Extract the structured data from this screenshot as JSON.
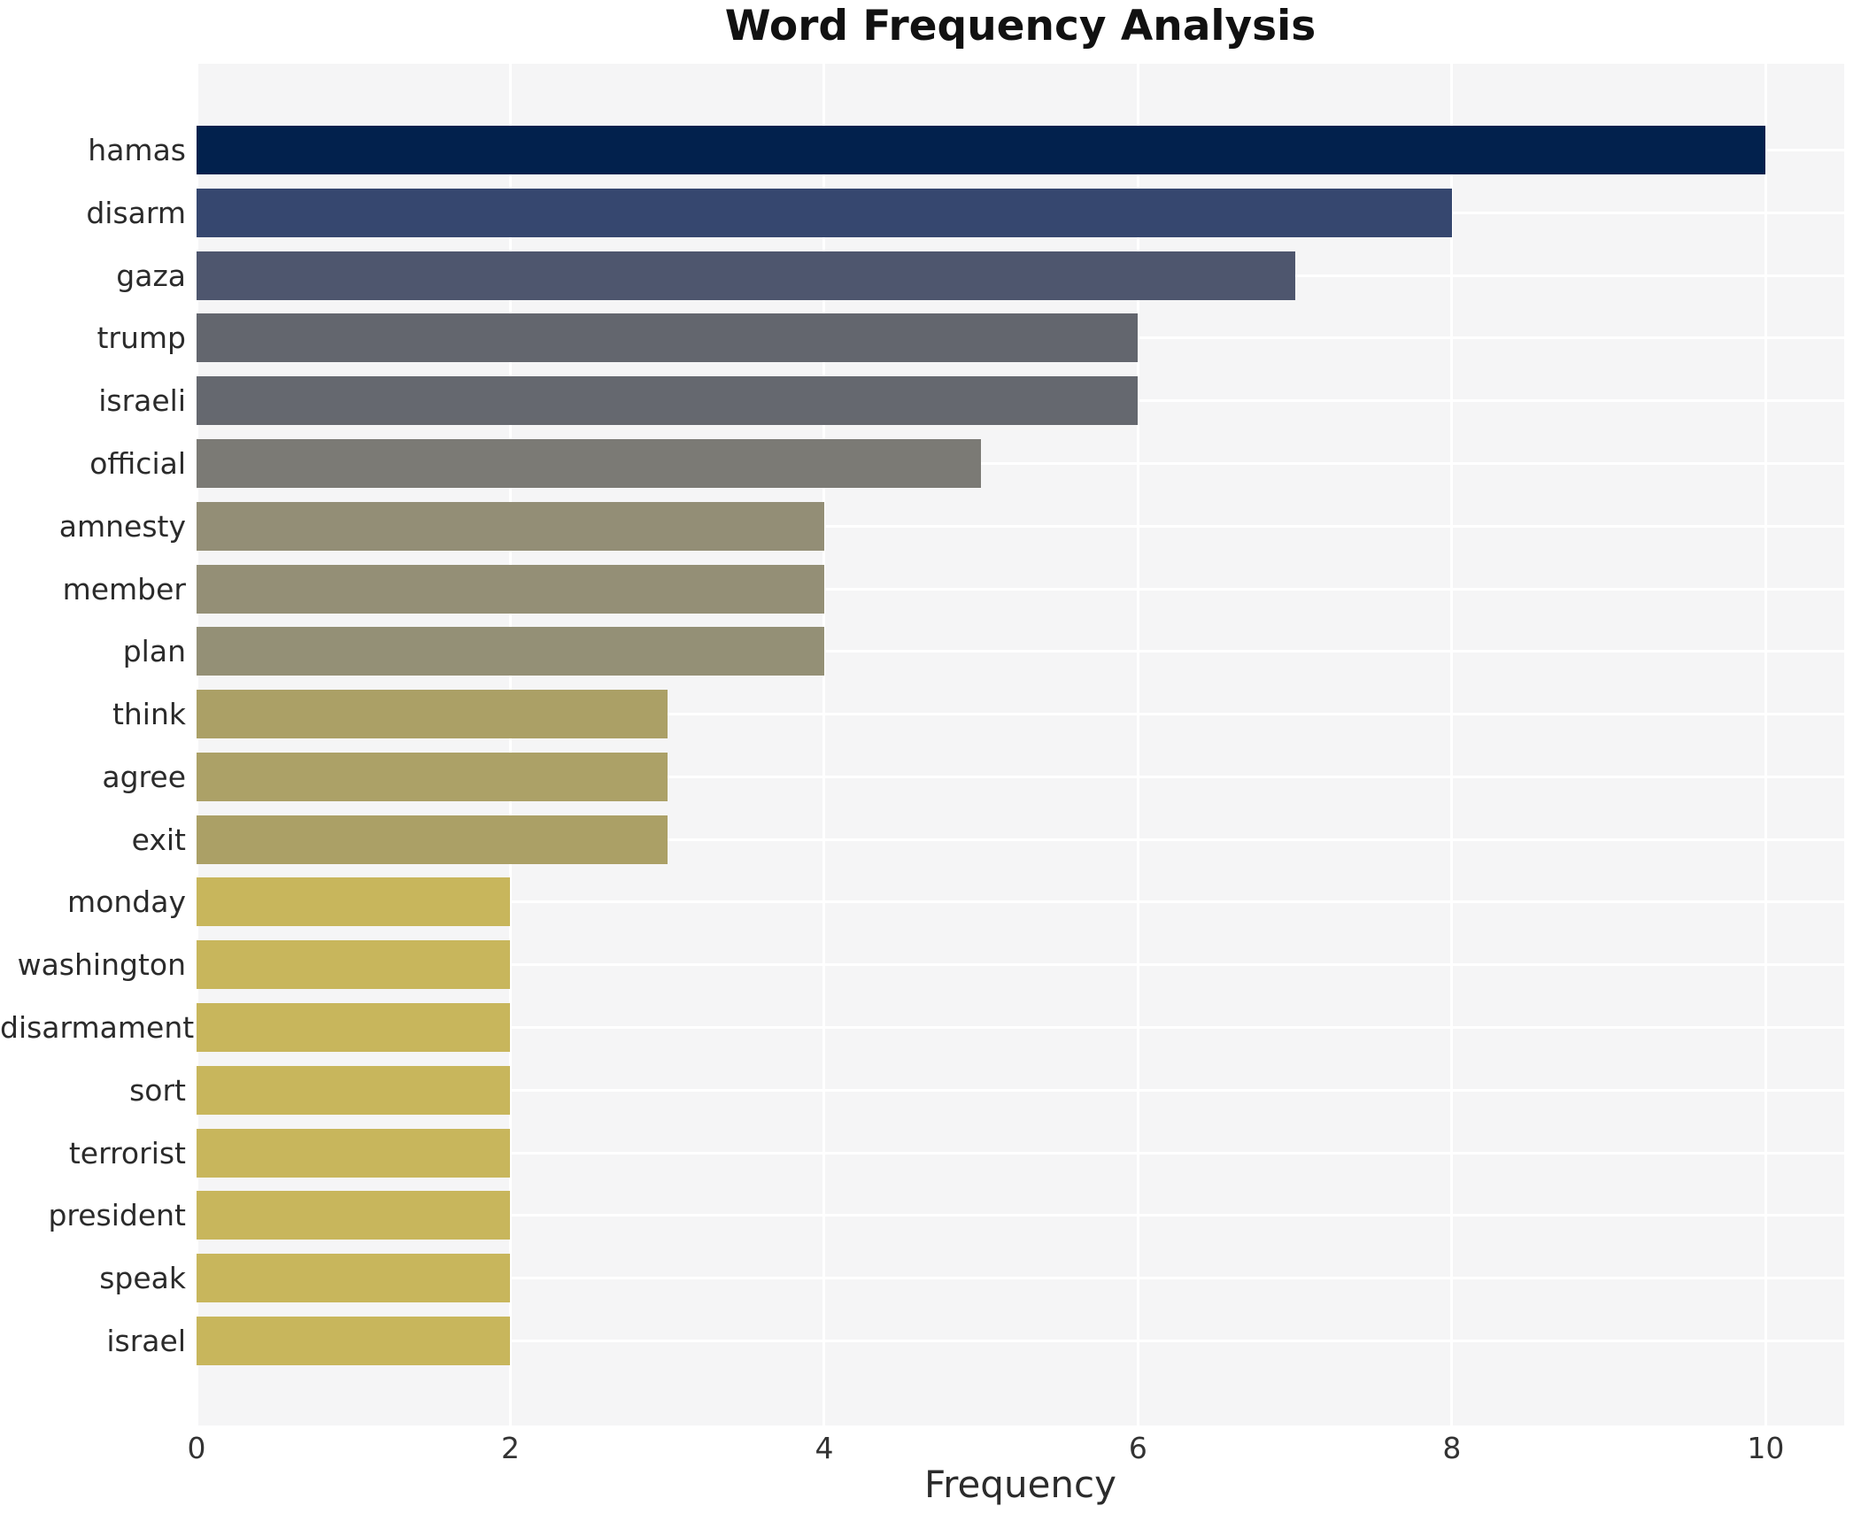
{
  "title": "Word Frequency Analysis",
  "chart_data": {
    "type": "bar",
    "orientation": "horizontal",
    "title": "Word Frequency Analysis",
    "xlabel": "Frequency",
    "ylabel": "",
    "categories": [
      "hamas",
      "disarm",
      "gaza",
      "trump",
      "israeli",
      "official",
      "amnesty",
      "member",
      "plan",
      "think",
      "agree",
      "exit",
      "monday",
      "washington",
      "disarmament",
      "sort",
      "terrorist",
      "president",
      "speak",
      "israel"
    ],
    "values": [
      10,
      8,
      7,
      6,
      6,
      5,
      4,
      4,
      4,
      3,
      3,
      3,
      2,
      2,
      2,
      2,
      2,
      2,
      2,
      2
    ],
    "bar_colors": [
      "#02214d",
      "#36476f",
      "#4e566e",
      "#63666e",
      "#65686f",
      "#7b7a75",
      "#938e76",
      "#948f76",
      "#949076",
      "#aba066",
      "#aca167",
      "#aba066",
      "#c8b65c",
      "#c8b65c",
      "#c8b65c",
      "#c8b65c",
      "#c8b65c",
      "#c8b65c",
      "#c8b65c",
      "#c8b65c"
    ],
    "xlim": [
      0,
      10.5
    ],
    "x_ticks": [
      "0",
      "2",
      "4",
      "6",
      "8",
      "10"
    ],
    "x_tick_values": [
      0,
      2,
      4,
      6,
      8,
      10
    ],
    "legend": "none",
    "grid": true,
    "plot_bg_color": "#f5f5f6",
    "grid_color": "#ffffff",
    "text_color": "#2b2b2b"
  }
}
